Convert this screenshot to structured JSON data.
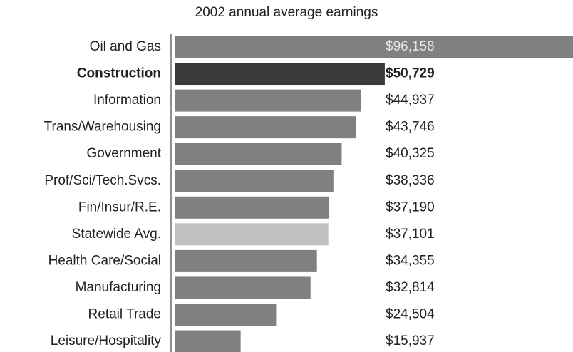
{
  "chart_data": {
    "type": "hbar",
    "title": "2002 annual average earnings",
    "categories": [
      "Oil and Gas",
      "Construction",
      "Information",
      "Trans/Warehousing",
      "Government",
      "Prof/Sci/Tech.Svcs.",
      "Fin/Insur/R.E.",
      "Statewide Avg.",
      "Health Care/Social",
      "Manufacturing",
      "Retail Trade",
      "Leisure/Hospitality"
    ],
    "values": [
      96158,
      50729,
      44937,
      43746,
      40325,
      38336,
      37190,
      37101,
      34355,
      32814,
      24504,
      15937
    ],
    "value_labels": [
      "$96,158",
      "$50,729",
      "$44,937",
      "$43,746",
      "$40,325",
      "$38,336",
      "$37,190",
      "$37,101",
      "$34,355",
      "$32,814",
      "$24,504",
      "$15,937"
    ],
    "colors": [
      "#808080",
      "#3a3a3a",
      "#808080",
      "#808080",
      "#808080",
      "#808080",
      "#808080",
      "#c0c0c0",
      "#808080",
      "#808080",
      "#808080",
      "#808080"
    ],
    "font_weights": [
      "normal",
      "bold",
      "normal",
      "normal",
      "normal",
      "normal",
      "normal",
      "normal",
      "normal",
      "normal",
      "normal",
      "normal"
    ]
  }
}
